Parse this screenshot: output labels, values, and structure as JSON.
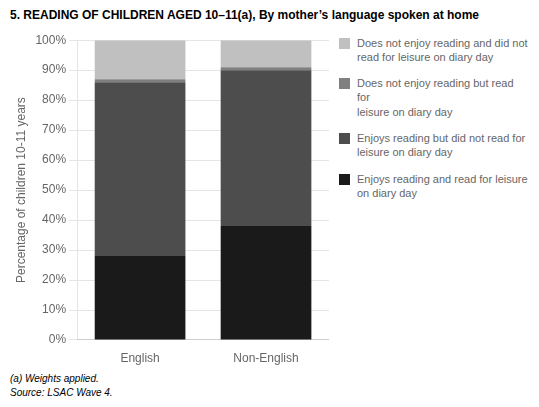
{
  "chart_data": {
    "type": "bar",
    "stacked": true,
    "title": "5. READING OF CHILDREN AGED 10–11(a), By mother’s language spoken at home",
    "categories": [
      "English",
      "Non-English"
    ],
    "series": [
      {
        "name": "Enjoys reading and read for leisure\non diary day",
        "color": "#1a1a1a",
        "values": [
          28,
          38
        ]
      },
      {
        "name": "Enjoys reading but did not read for\nleisure on diary day",
        "color": "#4d4d4d",
        "values": [
          58,
          52
        ]
      },
      {
        "name": "Does not enjoy reading but read for\nleisure on diary day",
        "color": "#808080",
        "values": [
          1,
          1
        ]
      },
      {
        "name": "Does not enjoy reading and did not\nread for leisure on diary day",
        "color": "#c0c0c0",
        "values": [
          13,
          9
        ]
      }
    ],
    "ylabel": "Percentage of children 10-11 years",
    "ylim": [
      0,
      100
    ],
    "yticks": [
      {
        "value": 0,
        "label": "0%"
      },
      {
        "value": 10,
        "label": "10%"
      },
      {
        "value": 20,
        "label": "20%"
      },
      {
        "value": 30,
        "label": "30%"
      },
      {
        "value": 40,
        "label": "40%"
      },
      {
        "value": 50,
        "label": "50%"
      },
      {
        "value": 60,
        "label": "60%"
      },
      {
        "value": 70,
        "label": "70%"
      },
      {
        "value": 80,
        "label": "80%"
      },
      {
        "value": 90,
        "label": "90%"
      },
      {
        "value": 100,
        "label": "100%"
      }
    ],
    "grid": true,
    "legend": "right",
    "annotations": [
      "(a) Weights applied.",
      "Source: LSAC Wave 4."
    ]
  }
}
